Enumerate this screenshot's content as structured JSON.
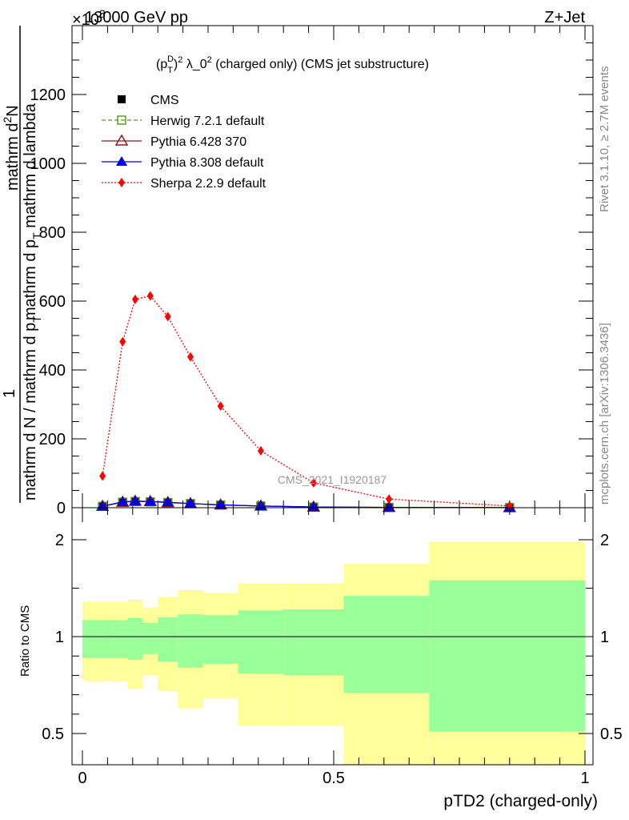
{
  "header": {
    "left": "13000 GeV pp",
    "right": "Z+Jet",
    "exponent": "×10",
    "exponent_power": "3"
  },
  "side_labels": {
    "rivet": "Rivet 3.1.10, ≥ 2.7M events",
    "mcplots": "mcplots.cern.ch [arXiv:1306.3436]"
  },
  "watermark": "CMS_2021_I1920187",
  "chart_data": [
    {
      "type": "line",
      "title_parts": [
        "(p",
        "T",
        "D",
        ")",
        "2",
        " λ_0",
        "2",
        " (charged only) (CMS jet substructure)"
      ],
      "ylabel": {
        "numerator": "1",
        "denominator": "mathrm d N / mathrm d p",
        "denominator_sub": "T",
        "denominator_rest": " mathrm d p",
        "denominator_sub2": "T",
        "denominator_end": " mathrm d lambda",
        "top": "mathrm d",
        "top_sup": "2",
        "top_end": "N"
      },
      "ylim": [
        0,
        1400
      ],
      "yticks": [
        0,
        200,
        400,
        600,
        800,
        1000,
        1200
      ],
      "xlim": [
        -0.02,
        1.0
      ],
      "legend_position": "top-left",
      "series": [
        {
          "name": "CMS",
          "color": "#000000",
          "marker": "square-filled",
          "line": "none",
          "x": [
            0.04,
            0.08,
            0.105,
            0.135,
            0.17,
            0.215,
            0.275,
            0.355,
            0.46,
            0.61,
            0.85
          ],
          "y": [
            4,
            16,
            18,
            17,
            15,
            12,
            8,
            5,
            2,
            0.8,
            0.3
          ]
        },
        {
          "name": "Herwig 7.2.1 default",
          "color": "#5b9e2a",
          "marker": "square-open",
          "line": "dashed",
          "x": [
            0.04,
            0.08,
            0.105,
            0.135,
            0.17,
            0.215,
            0.275,
            0.355,
            0.46,
            0.61,
            0.85
          ],
          "y": [
            4,
            16,
            18,
            17,
            15,
            12,
            8,
            5,
            2,
            0.8,
            0.3
          ]
        },
        {
          "name": "Pythia 6.428 370",
          "color": "#8b1a1a",
          "marker": "triangle-open",
          "line": "solid",
          "x": [
            0.04,
            0.08,
            0.105,
            0.135,
            0.17,
            0.215,
            0.275,
            0.355,
            0.46,
            0.61,
            0.85
          ],
          "y": [
            4,
            16,
            19,
            18,
            15,
            12,
            8,
            5,
            2,
            0.8,
            0.3
          ]
        },
        {
          "name": "Pythia 8.308 default",
          "color": "#0000dd",
          "marker": "triangle-filled",
          "line": "solid",
          "x": [
            0.04,
            0.08,
            0.105,
            0.135,
            0.17,
            0.215,
            0.275,
            0.355,
            0.46,
            0.61,
            0.85
          ],
          "y": [
            4,
            17,
            19,
            18,
            16,
            12,
            8,
            5,
            2,
            0.8,
            0.3
          ]
        },
        {
          "name": "Sherpa 2.2.9 default",
          "color": "#ff0000",
          "marker": "diamond-filled",
          "line": "dotted",
          "x": [
            0.04,
            0.08,
            0.105,
            0.135,
            0.17,
            0.215,
            0.275,
            0.355,
            0.46,
            0.61,
            0.85
          ],
          "y": [
            92,
            482,
            605,
            615,
            555,
            438,
            295,
            165,
            72,
            25,
            5
          ]
        }
      ]
    },
    {
      "type": "area",
      "ylabel": "Ratio to CMS",
      "xlabel": "pTD2 (charged-only)",
      "xlim": [
        -0.02,
        1.0
      ],
      "ylim": [
        0.35,
        2.25
      ],
      "xticks": [
        0,
        0.5,
        1
      ],
      "xtick_labels": [
        "0",
        "0.5",
        "1"
      ],
      "yticks": [
        0.5,
        1,
        2
      ],
      "ytick_labels": [
        "0.5",
        "1",
        "2"
      ],
      "reference_line": 1,
      "bins": [
        0.0,
        0.06,
        0.09,
        0.12,
        0.15,
        0.19,
        0.24,
        0.31,
        0.4,
        0.52,
        0.69,
        1.0
      ],
      "green_band": {
        "color": "#99ff99",
        "upper": [
          1.17,
          1.17,
          1.19,
          1.14,
          1.2,
          1.23,
          1.22,
          1.27,
          1.28,
          1.42,
          1.58,
          1.65
        ],
        "lower": [
          0.89,
          0.89,
          0.88,
          0.91,
          0.87,
          0.84,
          0.86,
          0.81,
          0.8,
          0.71,
          0.51,
          0.4
        ]
      },
      "yellow_band": {
        "color": "#ffff99",
        "upper": [
          1.36,
          1.36,
          1.38,
          1.3,
          1.41,
          1.48,
          1.45,
          1.55,
          1.55,
          1.75,
          1.98,
          2.1
        ],
        "lower": [
          0.77,
          0.77,
          0.73,
          0.8,
          0.72,
          0.63,
          0.68,
          0.54,
          0.54,
          0.32,
          0.32,
          0.32
        ]
      }
    }
  ]
}
